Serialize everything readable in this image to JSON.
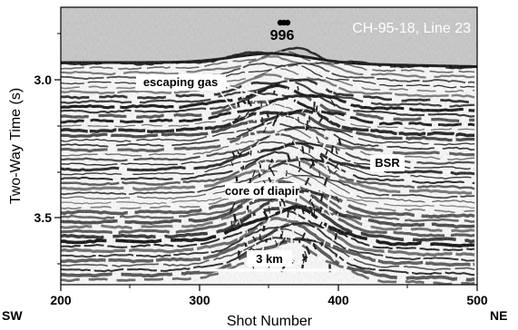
{
  "figure": {
    "line_label": "CH-95-18, Line 23",
    "site_label": "996",
    "x_axis": {
      "title": "Shot Number",
      "ticks": [
        "200",
        "300",
        "400",
        "500"
      ],
      "left_dir": "SW",
      "right_dir": "NE"
    },
    "y_axis": {
      "title": "Two-Way Time (s)",
      "ticks": [
        "3.0",
        "3.5"
      ]
    },
    "annotations": {
      "escaping_gas": "escaping gas",
      "bsr": "BSR",
      "core": "core of diapir"
    },
    "scale_bar": {
      "label": "3 km"
    },
    "colors": {
      "water": "#c8c8c8",
      "trace_dark": "#000000",
      "trace_light": "#ffffff"
    }
  }
}
